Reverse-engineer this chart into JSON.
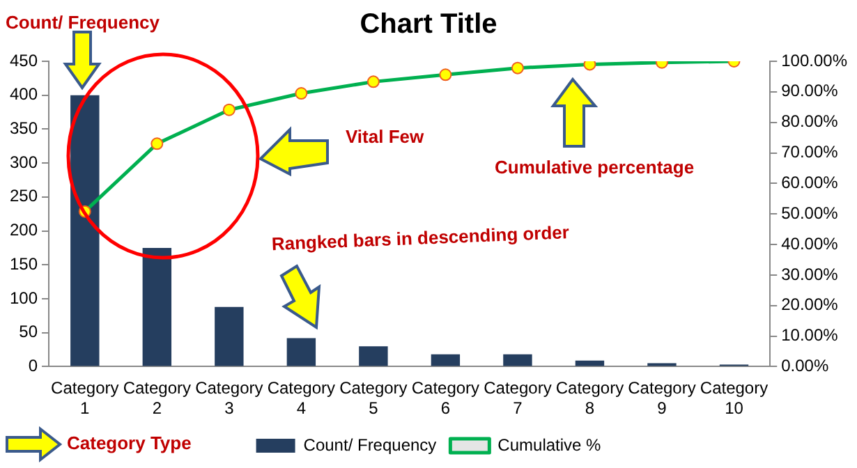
{
  "chart_data": {
    "type": "bar",
    "title": "Chart Title",
    "categories": [
      "Category 1",
      "Category 2",
      "Category 3",
      "Category 4",
      "Category 5",
      "Category 6",
      "Category 7",
      "Category 8",
      "Category 9",
      "Category 10"
    ],
    "series": [
      {
        "name": "Count/ Frequency",
        "color": "#253e5f",
        "values": [
          400,
          175,
          88,
          42,
          30,
          18,
          18,
          9,
          5,
          3
        ]
      },
      {
        "name": "Cumulative %",
        "type": "line",
        "axis": "y2",
        "color": "#00b050",
        "marker": "circle",
        "values": [
          50.8,
          73.0,
          84.1,
          89.5,
          93.3,
          95.6,
          97.8,
          99.0,
          99.6,
          100
        ]
      }
    ],
    "ylim": [
      0,
      450
    ],
    "yticks": [
      0,
      50,
      100,
      150,
      200,
      250,
      300,
      350,
      400,
      450
    ],
    "y2lim": [
      0,
      100
    ],
    "y2ticks": [
      {
        "value": 0,
        "label": "0.00%"
      },
      {
        "value": 10,
        "label": "10.00%"
      },
      {
        "value": 20,
        "label": "20.00%"
      },
      {
        "value": 30,
        "label": "30.00%"
      },
      {
        "value": 40,
        "label": "40.00%"
      },
      {
        "value": 50,
        "label": "50.00%"
      },
      {
        "value": 60,
        "label": "60.00%"
      },
      {
        "value": 70,
        "label": "70.00%"
      },
      {
        "value": 80,
        "label": "80.00%"
      },
      {
        "value": 90,
        "label": "90.00%"
      },
      {
        "value": 100,
        "label": "100.00%"
      }
    ],
    "annotations": [
      "Count/ Frequency",
      "Vital Few",
      "Cumulative percentage",
      "Rangked bars in descending order",
      "Category Type"
    ],
    "grid": false,
    "legend": "bottom"
  }
}
